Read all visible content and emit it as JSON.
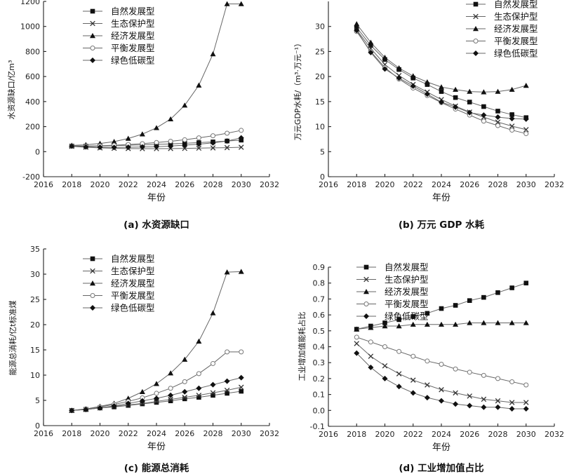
{
  "series_names": [
    "自然发展型",
    "生态保护型",
    "经济发展型",
    "平衡发展型",
    "绿色低碳型"
  ],
  "marker_shapes": [
    "square",
    "cross",
    "triangle",
    "circle-open",
    "diamond"
  ],
  "x_axis_label": "年份",
  "chart_data": [
    {
      "type": "line",
      "caption": "(a)  水资源缺口",
      "ylabel": "水资源缺口/亿m³",
      "xlabel": "年份",
      "xlim": [
        2016,
        2032
      ],
      "ylim": [
        -200,
        1200
      ],
      "xticks": [
        2016,
        2018,
        2020,
        2022,
        2024,
        2026,
        2028,
        2030,
        2032
      ],
      "yticks": [
        -200,
        0,
        200,
        400,
        600,
        800,
        1000,
        1200
      ],
      "yticklabels": [
        "-200",
        "0",
        "200",
        "400",
        "600",
        "800",
        "1000",
        "1200"
      ],
      "legend": "top-left",
      "x": [
        2018,
        2019,
        2020,
        2021,
        2022,
        2023,
        2024,
        2025,
        2026,
        2027,
        2028,
        2029,
        2030
      ],
      "series": [
        {
          "name": "自然发展型",
          "values": [
            45,
            44,
            46,
            48,
            51,
            54,
            58,
            62,
            67,
            72,
            78,
            85,
            92
          ]
        },
        {
          "name": "生态保护型",
          "values": [
            42,
            35,
            30,
            27,
            25,
            24,
            24,
            25,
            26,
            28,
            30,
            32,
            35
          ]
        },
        {
          "name": "经济发展型",
          "values": [
            50,
            55,
            65,
            80,
            105,
            140,
            190,
            260,
            370,
            530,
            780,
            1180,
            1180
          ]
        },
        {
          "name": "平衡发展型",
          "values": [
            46,
            44,
            47,
            51,
            57,
            64,
            73,
            83,
            95,
            110,
            127,
            147,
            170
          ]
        },
        {
          "name": "绿色低碳型",
          "values": [
            44,
            38,
            35,
            34,
            35,
            37,
            40,
            45,
            52,
            60,
            70,
            85,
            110
          ]
        }
      ]
    },
    {
      "type": "line",
      "caption": "(b)  万元 GDP 水耗",
      "ylabel": "万元GDP水耗/（m³·万元⁻¹）",
      "xlabel": "年份",
      "xlim": [
        2016,
        2032
      ],
      "ylim": [
        0,
        35
      ],
      "xticks": [
        2016,
        2018,
        2020,
        2022,
        2024,
        2026,
        2028,
        2030,
        2032
      ],
      "yticks": [
        0,
        5,
        10,
        15,
        20,
        25,
        30
      ],
      "yticklabels": [
        "0",
        "5",
        "10",
        "15",
        "20",
        "25",
        "30"
      ],
      "legend": "top-right",
      "x": [
        2018,
        2019,
        2020,
        2021,
        2022,
        2023,
        2024,
        2025,
        2026,
        2027,
        2028,
        2029,
        2030
      ],
      "series": [
        {
          "name": "自然发展型",
          "values": [
            29.8,
            26.2,
            23.4,
            21.4,
            19.7,
            18.4,
            17.0,
            15.8,
            14.9,
            14.0,
            13.1,
            12.4,
            11.8
          ]
        },
        {
          "name": "生态保护型",
          "values": [
            29.3,
            25.6,
            22.4,
            20.2,
            18.4,
            16.9,
            15.4,
            14.1,
            12.9,
            11.9,
            10.9,
            10.1,
            9.4
          ]
        },
        {
          "name": "经济发展型",
          "values": [
            30.5,
            26.8,
            23.8,
            21.7,
            20.1,
            18.9,
            17.9,
            17.4,
            17.0,
            16.9,
            17.0,
            17.4,
            18.2
          ]
        },
        {
          "name": "平衡发展型",
          "values": [
            29.0,
            25.0,
            21.8,
            19.5,
            17.7,
            16.2,
            14.8,
            13.5,
            12.3,
            11.1,
            10.2,
            9.3,
            8.6
          ]
        },
        {
          "name": "绿色低碳型",
          "values": [
            29.2,
            24.8,
            21.5,
            19.7,
            18.1,
            16.5,
            14.9,
            13.9,
            12.8,
            12.3,
            11.9,
            11.6,
            11.5
          ]
        }
      ]
    },
    {
      "type": "line",
      "caption": "(c)  能源总消耗",
      "ylabel": "能源总消耗/亿t标准煤",
      "xlabel": "年份",
      "xlim": [
        2016,
        2032
      ],
      "ylim": [
        0,
        35
      ],
      "xticks": [
        2016,
        2018,
        2020,
        2022,
        2024,
        2026,
        2028,
        2030,
        2032
      ],
      "yticks": [
        0,
        5,
        10,
        15,
        20,
        25,
        30,
        35
      ],
      "yticklabels": [
        "0",
        "5",
        "10",
        "15",
        "20",
        "25",
        "30",
        "35"
      ],
      "legend": "top-left",
      "x": [
        2018,
        2019,
        2020,
        2021,
        2022,
        2023,
        2024,
        2025,
        2026,
        2027,
        2028,
        2029,
        2030
      ],
      "series": [
        {
          "name": "自然发展型",
          "values": [
            3.0,
            3.2,
            3.5,
            3.7,
            4.0,
            4.3,
            4.6,
            4.9,
            5.3,
            5.6,
            6.0,
            6.4,
            6.8
          ]
        },
        {
          "name": "生态保护型",
          "values": [
            3.0,
            3.2,
            3.5,
            3.8,
            4.1,
            4.4,
            4.8,
            5.2,
            5.6,
            6.0,
            6.5,
            7.0,
            7.6
          ]
        },
        {
          "name": "经济发展型",
          "values": [
            3.0,
            3.3,
            3.8,
            4.4,
            5.4,
            6.7,
            8.3,
            10.4,
            13.1,
            16.7,
            22.3,
            30.4,
            30.5
          ]
        },
        {
          "name": "平衡发展型",
          "values": [
            3.0,
            3.3,
            3.7,
            4.2,
            4.8,
            5.5,
            6.4,
            7.4,
            8.7,
            10.3,
            12.3,
            14.6,
            14.6
          ]
        },
        {
          "name": "绿色低碳型",
          "values": [
            3.0,
            3.2,
            3.5,
            3.9,
            4.4,
            4.9,
            5.4,
            6.0,
            6.7,
            7.4,
            8.1,
            8.8,
            9.5
          ]
        }
      ]
    },
    {
      "type": "line",
      "caption": "(d)  工业增加值占比",
      "ylabel": "工业增加值能耗占比",
      "xlabel": "年份",
      "xlim": [
        2016,
        2032
      ],
      "ylim": [
        -0.1,
        0.9
      ],
      "xticks": [
        2016,
        2018,
        2020,
        2022,
        2024,
        2026,
        2028,
        2030,
        2032
      ],
      "yticks": [
        -0.1,
        0.0,
        0.1,
        0.2,
        0.3,
        0.4,
        0.5,
        0.6,
        0.7,
        0.8,
        0.9
      ],
      "yticklabels": [
        "-0.1",
        "0.0",
        "0.1",
        "0.2",
        "0.3",
        "0.4",
        "0.5",
        "0.6",
        "0.7",
        "0.8",
        "0.9"
      ],
      "legend": "top-center",
      "x": [
        2018,
        2019,
        2020,
        2021,
        2022,
        2023,
        2024,
        2025,
        2026,
        2027,
        2028,
        2029,
        2030
      ],
      "series": [
        {
          "name": "自然发展型",
          "values": [
            0.51,
            0.53,
            0.55,
            0.57,
            0.59,
            0.61,
            0.64,
            0.66,
            0.69,
            0.71,
            0.74,
            0.77,
            0.8
          ]
        },
        {
          "name": "生态保护型",
          "values": [
            0.42,
            0.34,
            0.28,
            0.23,
            0.19,
            0.16,
            0.13,
            0.11,
            0.09,
            0.07,
            0.06,
            0.05,
            0.05
          ]
        },
        {
          "name": "经济发展型",
          "values": [
            0.51,
            0.52,
            0.53,
            0.53,
            0.54,
            0.54,
            0.54,
            0.54,
            0.55,
            0.55,
            0.55,
            0.55,
            0.55
          ]
        },
        {
          "name": "平衡发展型",
          "values": [
            0.46,
            0.43,
            0.4,
            0.37,
            0.34,
            0.31,
            0.29,
            0.26,
            0.24,
            0.22,
            0.2,
            0.18,
            0.16
          ]
        },
        {
          "name": "绿色低碳型",
          "values": [
            0.36,
            0.27,
            0.2,
            0.15,
            0.11,
            0.08,
            0.06,
            0.04,
            0.03,
            0.02,
            0.02,
            0.01,
            0.01
          ]
        }
      ]
    }
  ]
}
